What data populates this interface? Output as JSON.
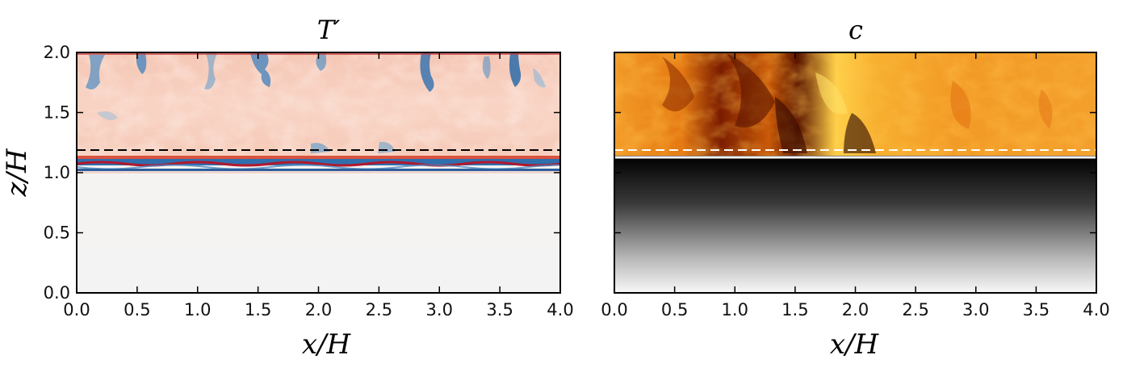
{
  "chart_data": [
    {
      "type": "heatmap",
      "title": "T′",
      "xlabel": "x/H",
      "ylabel": "z/H",
      "xlim": [
        0.0,
        4.0
      ],
      "ylim": [
        0.0,
        2.0
      ],
      "xticks": [
        "0.0",
        "0.5",
        "1.0",
        "1.5",
        "2.0",
        "2.5",
        "3.0",
        "3.5",
        "4.0"
      ],
      "yticks": [
        "0.0",
        "0.5",
        "1.0",
        "1.5",
        "2.0"
      ],
      "colormap": "RdBu_r",
      "dashed_line_z": 1.18,
      "dashed_line_color": "#000000",
      "solid_line_z": null
    },
    {
      "type": "heatmap",
      "title": "c",
      "xlabel": "x/H",
      "ylabel": "",
      "xlim": [
        0.0,
        4.0
      ],
      "ylim": [
        0.0,
        2.0
      ],
      "xticks": [
        "0.0",
        "0.5",
        "1.0",
        "1.5",
        "2.0",
        "2.5",
        "3.0",
        "3.5",
        "4.0"
      ],
      "yticks": [],
      "colormap": "afmhot_r / gray",
      "dashed_line_z": 1.18,
      "dashed_line_color": "#ffffff",
      "solid_line_z": 1.12,
      "solid_line_color": "#ffffff"
    }
  ],
  "colors": {
    "warm": "#f7c4b0",
    "cool": "#3b78b4",
    "deep_red": "#b2182b",
    "neutral": "#f4f4f4",
    "flame_bright": "#ffd84a",
    "flame_mid": "#f08a1a",
    "flame_dark": "#3a0a00"
  }
}
